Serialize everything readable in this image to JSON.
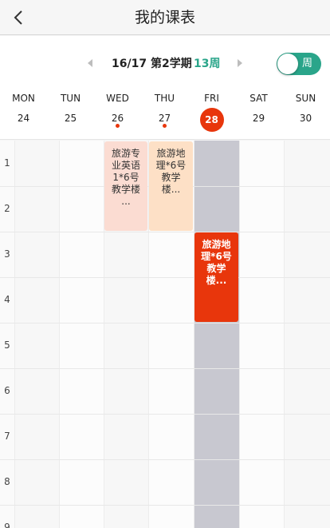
{
  "nav": {
    "title": "我的课表"
  },
  "term": {
    "label": "16/17 第2学期",
    "week": "13周"
  },
  "view_toggle": {
    "label": "周",
    "on": true
  },
  "days": [
    {
      "name": "MON",
      "date": "24",
      "today": false,
      "dot": false
    },
    {
      "name": "TUN",
      "date": "25",
      "today": false,
      "dot": false
    },
    {
      "name": "WED",
      "date": "26",
      "today": false,
      "dot": true
    },
    {
      "name": "THU",
      "date": "27",
      "today": false,
      "dot": true
    },
    {
      "name": "FRI",
      "date": "28",
      "today": true,
      "dot": false
    },
    {
      "name": "SAT",
      "date": "29",
      "today": false,
      "dot": false
    },
    {
      "name": "SUN",
      "date": "30",
      "today": false,
      "dot": false
    }
  ],
  "periods": [
    "1",
    "2",
    "3",
    "4",
    "5",
    "6",
    "7",
    "8",
    "9"
  ],
  "courses": [
    {
      "text": "旅游专业英语1*6号教学楼 ...",
      "day": 2,
      "start": 1,
      "span": 2
    },
    {
      "text": "旅游地理*6号教学楼...",
      "day": 3,
      "start": 1,
      "span": 2
    },
    {
      "text": "旅游地理*6号教学楼...",
      "day": 4,
      "start": 3,
      "span": 2
    }
  ],
  "colors": {
    "accent_green": "#2aa58a",
    "today_red": "#e8360c",
    "today_column": "#c8c8d0",
    "course_pink": "#fbdcd2",
    "course_peach": "#fde0c6"
  }
}
